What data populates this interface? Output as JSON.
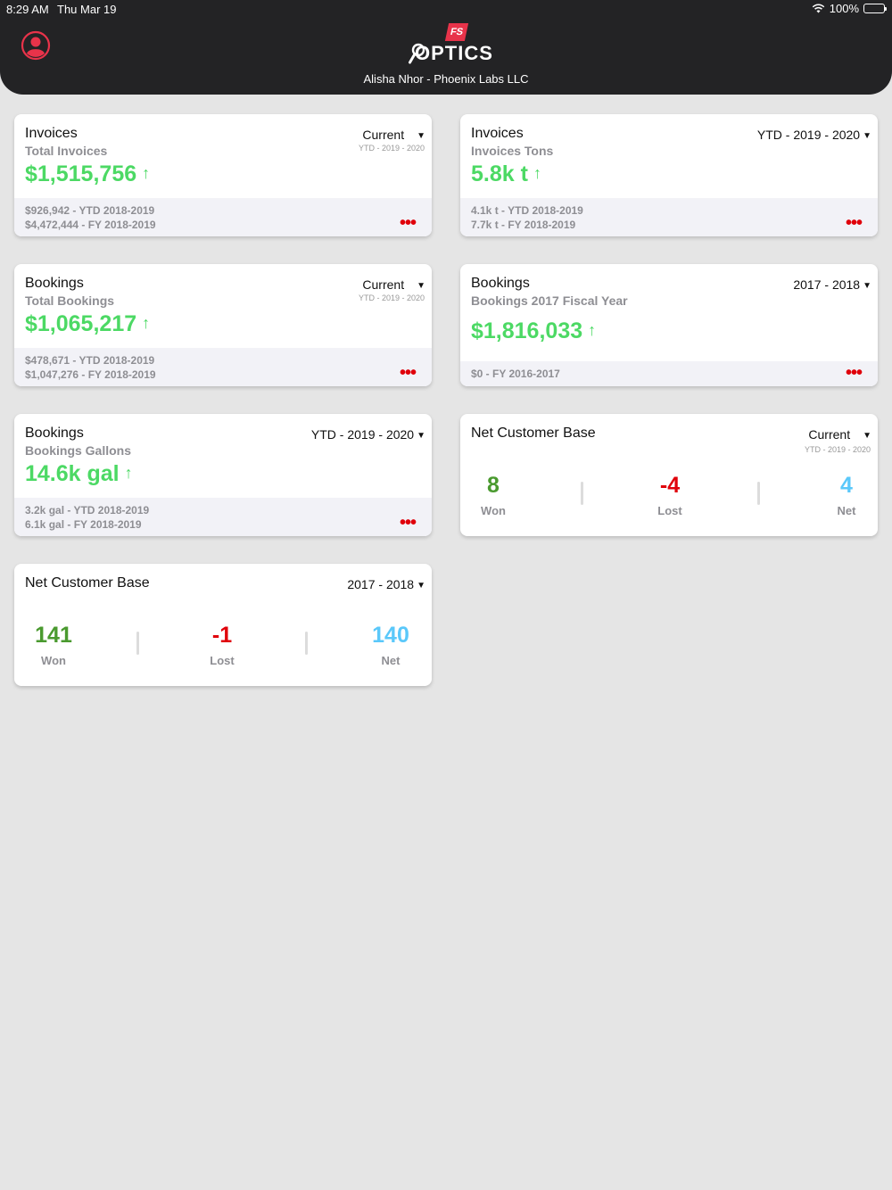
{
  "status": {
    "time": "8:29 AM",
    "date": "Thu Mar 19",
    "battery": "100%"
  },
  "header": {
    "logo_text": "OPTICS",
    "logo_badge": "FS",
    "user_line": "Alisha Nhor - Phoenix Labs LLC"
  },
  "colors": {
    "positive": "#4cd964",
    "won": "#4a9a2f",
    "lost": "#e0000a",
    "net": "#5ac8fa",
    "header_bg": "#232325"
  },
  "cards": [
    {
      "title": "Invoices",
      "subtitle": "Total Invoices",
      "period": "Current",
      "period_detail": "YTD - 2019 - 2020",
      "value": "$1,515,756",
      "arrow": "↑",
      "footer1": "$926,942 - YTD 2018-2019",
      "footer2": "$4,472,444 - FY 2018-2019",
      "more": "•••"
    },
    {
      "title": "Invoices",
      "subtitle": "Invoices Tons",
      "period": "YTD - 2019 - 2020",
      "value": "5.8k t",
      "arrow": "↑",
      "footer1": "4.1k t - YTD 2018-2019",
      "footer2": "7.7k t - FY 2018-2019",
      "more": "•••"
    },
    {
      "title": "Bookings",
      "subtitle": "Total Bookings",
      "period": "Current",
      "period_detail": "YTD - 2019 - 2020",
      "value": "$1,065,217",
      "arrow": "↑",
      "footer1": "$478,671 - YTD 2018-2019",
      "footer2": "$1,047,276 - FY 2018-2019",
      "more": "•••"
    },
    {
      "title": "Bookings",
      "subtitle": "Bookings 2017 Fiscal Year",
      "period": "2017 - 2018",
      "value": "$1,816,033",
      "arrow": "↑",
      "footer1": "$0 - FY 2016-2017",
      "more": "•••"
    },
    {
      "title": "Bookings",
      "subtitle": "Bookings Gallons",
      "period": "YTD - 2019 - 2020",
      "value": "14.6k gal",
      "arrow": "↑",
      "footer1": "3.2k gal - YTD 2018-2019",
      "footer2": "6.1k gal - FY 2018-2019",
      "more": "•••"
    }
  ],
  "ncb": [
    {
      "title": "Net Customer Base",
      "period": "Current",
      "period_detail": "YTD - 2019 - 2020",
      "won": "8",
      "won_label": "Won",
      "lost": "-4",
      "lost_label": "Lost",
      "net": "4",
      "net_label": "Net"
    },
    {
      "title": "Net Customer Base",
      "period": "2017 - 2018",
      "won": "141",
      "won_label": "Won",
      "lost": "-1",
      "lost_label": "Lost",
      "net": "140",
      "net_label": "Net"
    }
  ],
  "icons": {
    "profile": "user-circle-icon",
    "wifi": "wifi-icon",
    "battery": "battery-icon",
    "dropdown": "triangle-down-icon",
    "more": "ellipsis-icon",
    "arrow": "arrow-up-icon"
  }
}
